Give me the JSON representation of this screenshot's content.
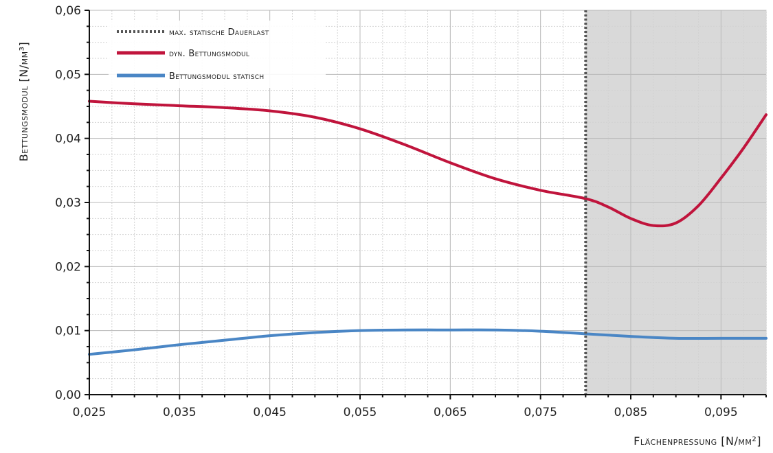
{
  "chart_data": {
    "type": "line",
    "title": "",
    "xlabel": "Flächenpressung [N/mm²]",
    "ylabel": "Bettungsmodul [N/mm³]",
    "xlim": [
      0.025,
      0.1
    ],
    "ylim": [
      0,
      0.06
    ],
    "x_ticks": [
      "0,025",
      "0,035",
      "0,045",
      "0,055",
      "0,065",
      "0,075",
      "0,085",
      "0,095"
    ],
    "y_ticks": [
      "0,00",
      "0,01",
      "0,02",
      "0,03",
      "0,04",
      "0,05",
      "0,06"
    ],
    "grid": true,
    "legend_position": "top-left",
    "shaded_region": {
      "x_from": 0.08,
      "x_to": 0.1,
      "color": "#d9d9d9"
    },
    "vertical_line": {
      "name": "max. statische Dauerlast",
      "x": 0.08,
      "color": "#555555",
      "style": "dotted"
    },
    "series": [
      {
        "name": "dyn. Bettungsmodul",
        "color": "#c0143c",
        "x": [
          0.025,
          0.03,
          0.035,
          0.04,
          0.045,
          0.05,
          0.055,
          0.06,
          0.065,
          0.07,
          0.075,
          0.08,
          0.0825,
          0.085,
          0.0875,
          0.09,
          0.0925,
          0.095,
          0.0975,
          0.1
        ],
        "y": [
          0.0458,
          0.0454,
          0.0451,
          0.0448,
          0.0443,
          0.0433,
          0.0415,
          0.039,
          0.0362,
          0.0337,
          0.0319,
          0.0306,
          0.0293,
          0.0275,
          0.0264,
          0.0268,
          0.0295,
          0.0338,
          0.0385,
          0.0437
        ]
      },
      {
        "name": "Bettungsmodul statisch",
        "color": "#4a86c5",
        "x": [
          0.025,
          0.03,
          0.035,
          0.04,
          0.045,
          0.05,
          0.055,
          0.06,
          0.065,
          0.07,
          0.075,
          0.08,
          0.085,
          0.09,
          0.095,
          0.1
        ],
        "y": [
          0.0063,
          0.007,
          0.0078,
          0.0085,
          0.0092,
          0.0097,
          0.01,
          0.0101,
          0.0101,
          0.0101,
          0.0099,
          0.0095,
          0.0091,
          0.0088,
          0.0088,
          0.0088
        ]
      }
    ]
  }
}
